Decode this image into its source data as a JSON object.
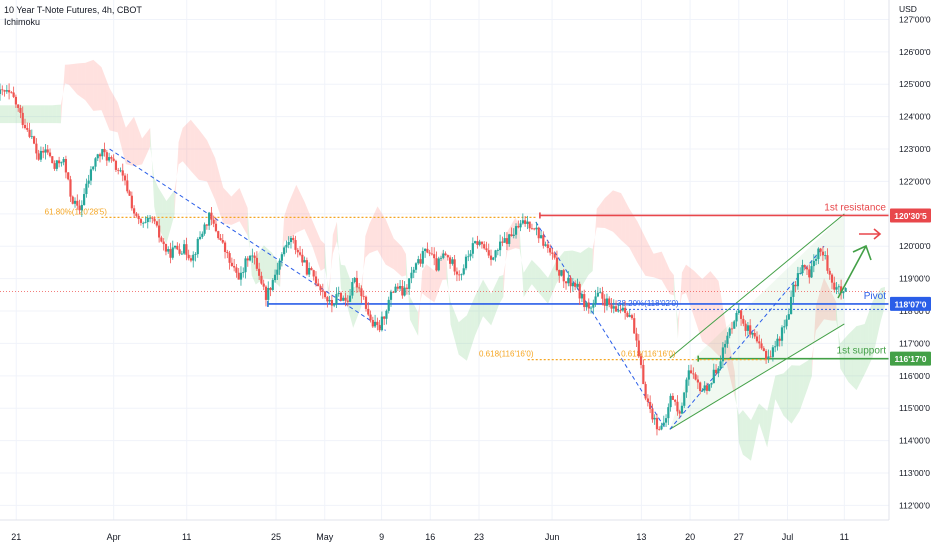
{
  "legend": {
    "title": "10 Year T-Note Futures, 4h, CBOT",
    "indicator": "Ichimoku"
  },
  "chart_data": {
    "type": "candlestick",
    "currency": "USD",
    "y_ticks": [
      "127'00'0",
      "126'00'0",
      "125'00'0",
      "124'00'0",
      "123'00'0",
      "122'00'0",
      "121'00'0",
      "120'00'0",
      "119'00'0",
      "118'00'0",
      "117'00'0",
      "116'00'0",
      "115'00'0",
      "114'00'0",
      "113'00'0",
      "112'00'0"
    ],
    "y_tick_values": [
      127,
      126,
      125,
      124,
      123,
      122,
      121,
      120,
      119,
      118,
      117,
      116,
      115,
      114,
      113,
      112
    ],
    "ylim": [
      111.55,
      127.6
    ],
    "x_ticks": [
      {
        "label": "21",
        "t": 2
      },
      {
        "label": "Apr",
        "t": 14
      },
      {
        "label": "11",
        "t": 23
      },
      {
        "label": "25",
        "t": 34
      },
      {
        "label": "May",
        "t": 40
      },
      {
        "label": "9",
        "t": 47
      },
      {
        "label": "16",
        "t": 53
      },
      {
        "label": "23",
        "t": 59
      },
      {
        "label": "Jun",
        "t": 68
      },
      {
        "label": "13",
        "t": 79
      },
      {
        "label": "20",
        "t": 85
      },
      {
        "label": "27",
        "t": 91
      },
      {
        "label": "Jul",
        "t": 97
      },
      {
        "label": "11",
        "t": 104
      }
    ],
    "x_range": [
      0,
      109.5
    ],
    "price_path": [
      [
        0,
        124.7
      ],
      [
        1,
        124.75
      ],
      [
        2,
        124.55
      ],
      [
        3,
        123.9
      ],
      [
        4,
        123.5
      ],
      [
        5,
        122.7
      ],
      [
        6,
        123.0
      ],
      [
        7,
        122.4
      ],
      [
        8,
        122.75
      ],
      [
        9,
        121.55
      ],
      [
        10,
        121.05
      ],
      [
        11,
        121.9
      ],
      [
        12,
        122.7
      ],
      [
        13,
        122.9
      ],
      [
        14,
        122.6
      ],
      [
        15,
        122.3
      ],
      [
        16,
        121.75
      ],
      [
        17,
        120.85
      ],
      [
        18,
        120.6
      ],
      [
        19,
        120.85
      ],
      [
        20,
        120.25
      ],
      [
        21,
        119.75
      ],
      [
        22,
        119.95
      ],
      [
        23,
        119.9
      ],
      [
        24,
        119.65
      ],
      [
        25,
        120.35
      ],
      [
        26,
        120.9
      ],
      [
        27,
        120.45
      ],
      [
        28,
        119.85
      ],
      [
        29,
        119.25
      ],
      [
        30,
        119.05
      ],
      [
        31,
        119.85
      ],
      [
        32,
        119.35
      ],
      [
        33,
        118.45
      ],
      [
        34,
        119.05
      ],
      [
        35,
        119.75
      ],
      [
        36,
        120.25
      ],
      [
        37,
        119.85
      ],
      [
        38,
        119.3
      ],
      [
        39,
        119.05
      ],
      [
        40,
        118.65
      ],
      [
        41,
        118.15
      ],
      [
        42,
        118.5
      ],
      [
        43,
        118.3
      ],
      [
        44,
        118.95
      ],
      [
        45,
        118.5
      ],
      [
        46,
        117.6
      ],
      [
        47,
        117.45
      ],
      [
        48,
        118.2
      ],
      [
        49,
        118.8
      ],
      [
        50,
        118.5
      ],
      [
        51,
        119.15
      ],
      [
        52,
        119.55
      ],
      [
        53,
        119.95
      ],
      [
        54,
        119.35
      ],
      [
        55,
        119.75
      ],
      [
        56,
        119.45
      ],
      [
        57,
        119.15
      ],
      [
        58,
        119.75
      ],
      [
        59,
        120.15
      ],
      [
        60,
        119.95
      ],
      [
        61,
        119.65
      ],
      [
        62,
        120.05
      ],
      [
        63,
        120.25
      ],
      [
        64,
        120.55
      ],
      [
        65,
        120.75
      ],
      [
        66,
        120.65
      ],
      [
        67,
        120.2
      ],
      [
        68,
        119.8
      ],
      [
        69,
        119.3
      ],
      [
        70,
        118.85
      ],
      [
        71,
        118.9
      ],
      [
        72,
        118.35
      ],
      [
        73,
        118.05
      ],
      [
        74,
        118.5
      ],
      [
        75,
        118.25
      ],
      [
        76,
        117.95
      ],
      [
        77,
        118.15
      ],
      [
        78,
        117.85
      ],
      [
        79,
        116.5
      ],
      [
        80,
        115.2
      ],
      [
        81,
        114.55
      ],
      [
        82,
        114.35
      ],
      [
        83,
        115.45
      ],
      [
        84,
        114.75
      ],
      [
        85,
        116.2
      ],
      [
        86,
        115.75
      ],
      [
        87,
        115.55
      ],
      [
        88,
        115.9
      ],
      [
        89,
        116.55
      ],
      [
        90,
        117.25
      ],
      [
        91,
        118.05
      ],
      [
        92,
        117.6
      ],
      [
        93,
        117.15
      ],
      [
        94,
        116.8
      ],
      [
        95,
        116.6
      ],
      [
        96,
        117.05
      ],
      [
        97,
        117.6
      ],
      [
        98,
        118.65
      ],
      [
        99,
        119.45
      ],
      [
        100,
        119.05
      ],
      [
        101,
        119.95
      ],
      [
        102,
        119.55
      ],
      [
        103,
        118.75
      ],
      [
        104,
        118.55
      ]
    ],
    "levels": [
      {
        "name": "1st resistance",
        "label": "1st resistance",
        "price_label": "120'30'5",
        "value": 120.95,
        "color": "#e8474b",
        "from_t": 66.5
      },
      {
        "name": "Pivot",
        "label": "Pivot",
        "price_label": "118'07'0",
        "value": 118.22,
        "color": "#2a5ee8",
        "from_t": 33
      },
      {
        "name": "1st support",
        "label": "1st support",
        "price_label": "116'17'0",
        "value": 116.53,
        "color": "#43a047",
        "from_t": 86
      }
    ],
    "fib_labels": [
      {
        "text": "61.80%(120'28'5)",
        "t": 5.5,
        "value": 120.89
      },
      {
        "text": "38.20%(118'02'0)",
        "t": 76,
        "value": 118.06
      },
      {
        "text": "0.618(116'16'0)",
        "t": 59,
        "value": 116.5
      },
      {
        "text": "0.618(116'16'0)",
        "t": 76.5,
        "value": 116.5
      }
    ],
    "annotations": {
      "last_price_dotted": 118.6
    }
  }
}
